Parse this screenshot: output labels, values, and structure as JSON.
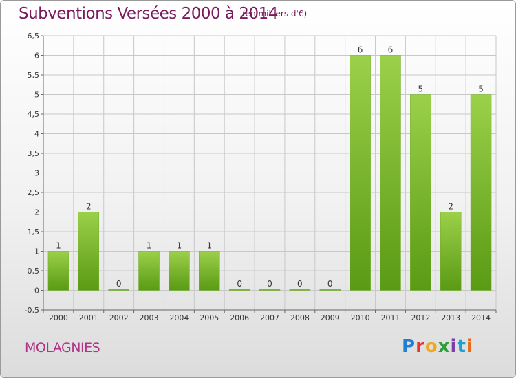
{
  "header": {
    "title": "Subventions Versées 2000 à 2014",
    "unit": "(en milliers d'€)"
  },
  "footer": {
    "commune": "MOLAGNIES",
    "brand": [
      "P",
      "r",
      "o",
      "x",
      "i",
      "t",
      "i"
    ],
    "brand_colors": [
      "#1f7fd0",
      "#e8352b",
      "#f2a81d",
      "#2f9e3a",
      "#7b3fa6",
      "#1f9fd0",
      "#e86b1d"
    ]
  },
  "colors": {
    "bar_top": "#9bd04a",
    "bar_bottom": "#5a9a14",
    "grid": "#c8c8c8",
    "title": "#7a1a5a"
  },
  "chart_data": {
    "type": "bar",
    "title": "Subventions Versées 2000 à 2014",
    "subtitle": "(en milliers d'€)",
    "xlabel": "",
    "ylabel": "",
    "categories": [
      "2000",
      "2001",
      "2002",
      "2003",
      "2004",
      "2005",
      "2006",
      "2007",
      "2008",
      "2009",
      "2010",
      "2011",
      "2012",
      "2013",
      "2014"
    ],
    "values": [
      1,
      2,
      0,
      1,
      1,
      1,
      0,
      0,
      0,
      0,
      6,
      6,
      5,
      2,
      5
    ],
    "value_labels": [
      "1",
      "2",
      "0",
      "1",
      "1",
      "1",
      "0",
      "0",
      "0",
      "0",
      "6",
      "6",
      "5",
      "2",
      "5"
    ],
    "ylim": [
      -0.5,
      6.5
    ],
    "yticks": [
      -0.5,
      0,
      0.5,
      1,
      1.5,
      2,
      2.5,
      3,
      3.5,
      4,
      4.5,
      5,
      5.5,
      6,
      6.5
    ],
    "ytick_labels": [
      "-0,5",
      "0",
      "0,5",
      "1",
      "1,5",
      "2",
      "2,5",
      "3",
      "3,5",
      "4",
      "4,5",
      "5",
      "5,5",
      "6",
      "6,5"
    ],
    "grid": true,
    "legend": "none"
  }
}
